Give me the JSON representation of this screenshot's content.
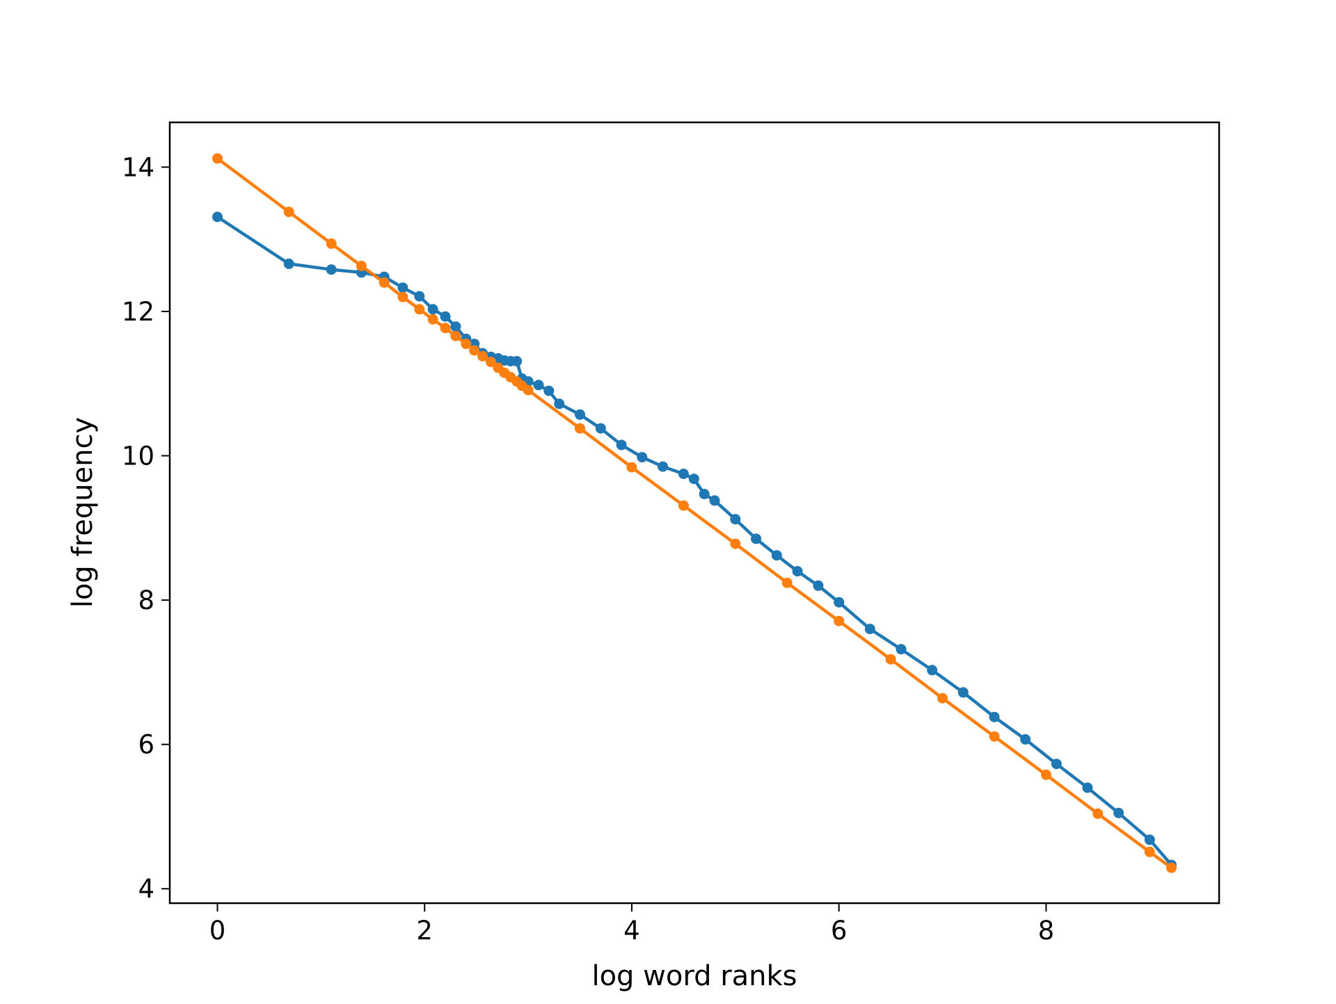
{
  "chart_data": {
    "type": "line",
    "title": "",
    "xlabel": "log word ranks",
    "ylabel": "log frequency",
    "xlim": [
      -0.46,
      9.67
    ],
    "ylim": [
      3.8,
      14.62
    ],
    "xticks": [
      0,
      2,
      4,
      6,
      8
    ],
    "yticks": [
      4,
      6,
      8,
      10,
      12,
      14
    ],
    "xtick_labels": [
      "0",
      "2",
      "4",
      "6",
      "8"
    ],
    "ytick_labels": [
      "4",
      "6",
      "8",
      "10",
      "12",
      "14"
    ],
    "grid": false,
    "legend": "none",
    "marker": "circle",
    "series": [
      {
        "color": "#1f77b4",
        "points": [
          [
            0.0,
            13.31
          ],
          [
            0.69,
            12.66
          ],
          [
            1.1,
            12.58
          ],
          [
            1.39,
            12.54
          ],
          [
            1.61,
            12.48
          ],
          [
            1.79,
            12.33
          ],
          [
            1.95,
            12.21
          ],
          [
            2.08,
            12.03
          ],
          [
            2.2,
            11.93
          ],
          [
            2.3,
            11.79
          ],
          [
            2.4,
            11.62
          ],
          [
            2.48,
            11.55
          ],
          [
            2.56,
            11.42
          ],
          [
            2.64,
            11.37
          ],
          [
            2.71,
            11.35
          ],
          [
            2.77,
            11.32
          ],
          [
            2.83,
            11.31
          ],
          [
            2.89,
            11.31
          ],
          [
            2.94,
            11.07
          ],
          [
            3.0,
            11.03
          ],
          [
            3.1,
            10.98
          ],
          [
            3.2,
            10.9
          ],
          [
            3.3,
            10.72
          ],
          [
            3.5,
            10.57
          ],
          [
            3.7,
            10.38
          ],
          [
            3.9,
            10.15
          ],
          [
            4.1,
            9.98
          ],
          [
            4.3,
            9.85
          ],
          [
            4.5,
            9.75
          ],
          [
            4.6,
            9.68
          ],
          [
            4.7,
            9.47
          ],
          [
            4.8,
            9.38
          ],
          [
            5.0,
            9.12
          ],
          [
            5.2,
            8.85
          ],
          [
            5.4,
            8.62
          ],
          [
            5.6,
            8.4
          ],
          [
            5.8,
            8.2
          ],
          [
            6.0,
            7.97
          ],
          [
            6.3,
            7.6
          ],
          [
            6.6,
            7.32
          ],
          [
            6.9,
            7.03
          ],
          [
            7.2,
            6.72
          ],
          [
            7.5,
            6.38
          ],
          [
            7.8,
            6.07
          ],
          [
            8.1,
            5.73
          ],
          [
            8.4,
            5.4
          ],
          [
            8.7,
            5.05
          ],
          [
            9.0,
            4.68
          ],
          [
            9.21,
            4.33
          ]
        ]
      },
      {
        "color": "#ff7f0e",
        "points": [
          [
            0.0,
            14.12
          ],
          [
            0.69,
            13.38
          ],
          [
            1.1,
            12.94
          ],
          [
            1.39,
            12.63
          ],
          [
            1.61,
            12.4
          ],
          [
            1.79,
            12.2
          ],
          [
            1.95,
            12.03
          ],
          [
            2.08,
            11.89
          ],
          [
            2.2,
            11.77
          ],
          [
            2.3,
            11.66
          ],
          [
            2.4,
            11.55
          ],
          [
            2.48,
            11.46
          ],
          [
            2.56,
            11.38
          ],
          [
            2.64,
            11.3
          ],
          [
            2.71,
            11.22
          ],
          [
            2.77,
            11.15
          ],
          [
            2.83,
            11.09
          ],
          [
            2.89,
            11.03
          ],
          [
            2.94,
            10.97
          ],
          [
            3.0,
            10.91
          ],
          [
            3.5,
            10.38
          ],
          [
            4.0,
            9.84
          ],
          [
            4.5,
            9.31
          ],
          [
            5.0,
            8.78
          ],
          [
            5.5,
            8.24
          ],
          [
            6.0,
            7.71
          ],
          [
            6.5,
            7.18
          ],
          [
            7.0,
            6.64
          ],
          [
            7.5,
            6.11
          ],
          [
            8.0,
            5.58
          ],
          [
            8.5,
            5.04
          ],
          [
            9.0,
            4.51
          ],
          [
            9.21,
            4.29
          ]
        ]
      }
    ]
  }
}
